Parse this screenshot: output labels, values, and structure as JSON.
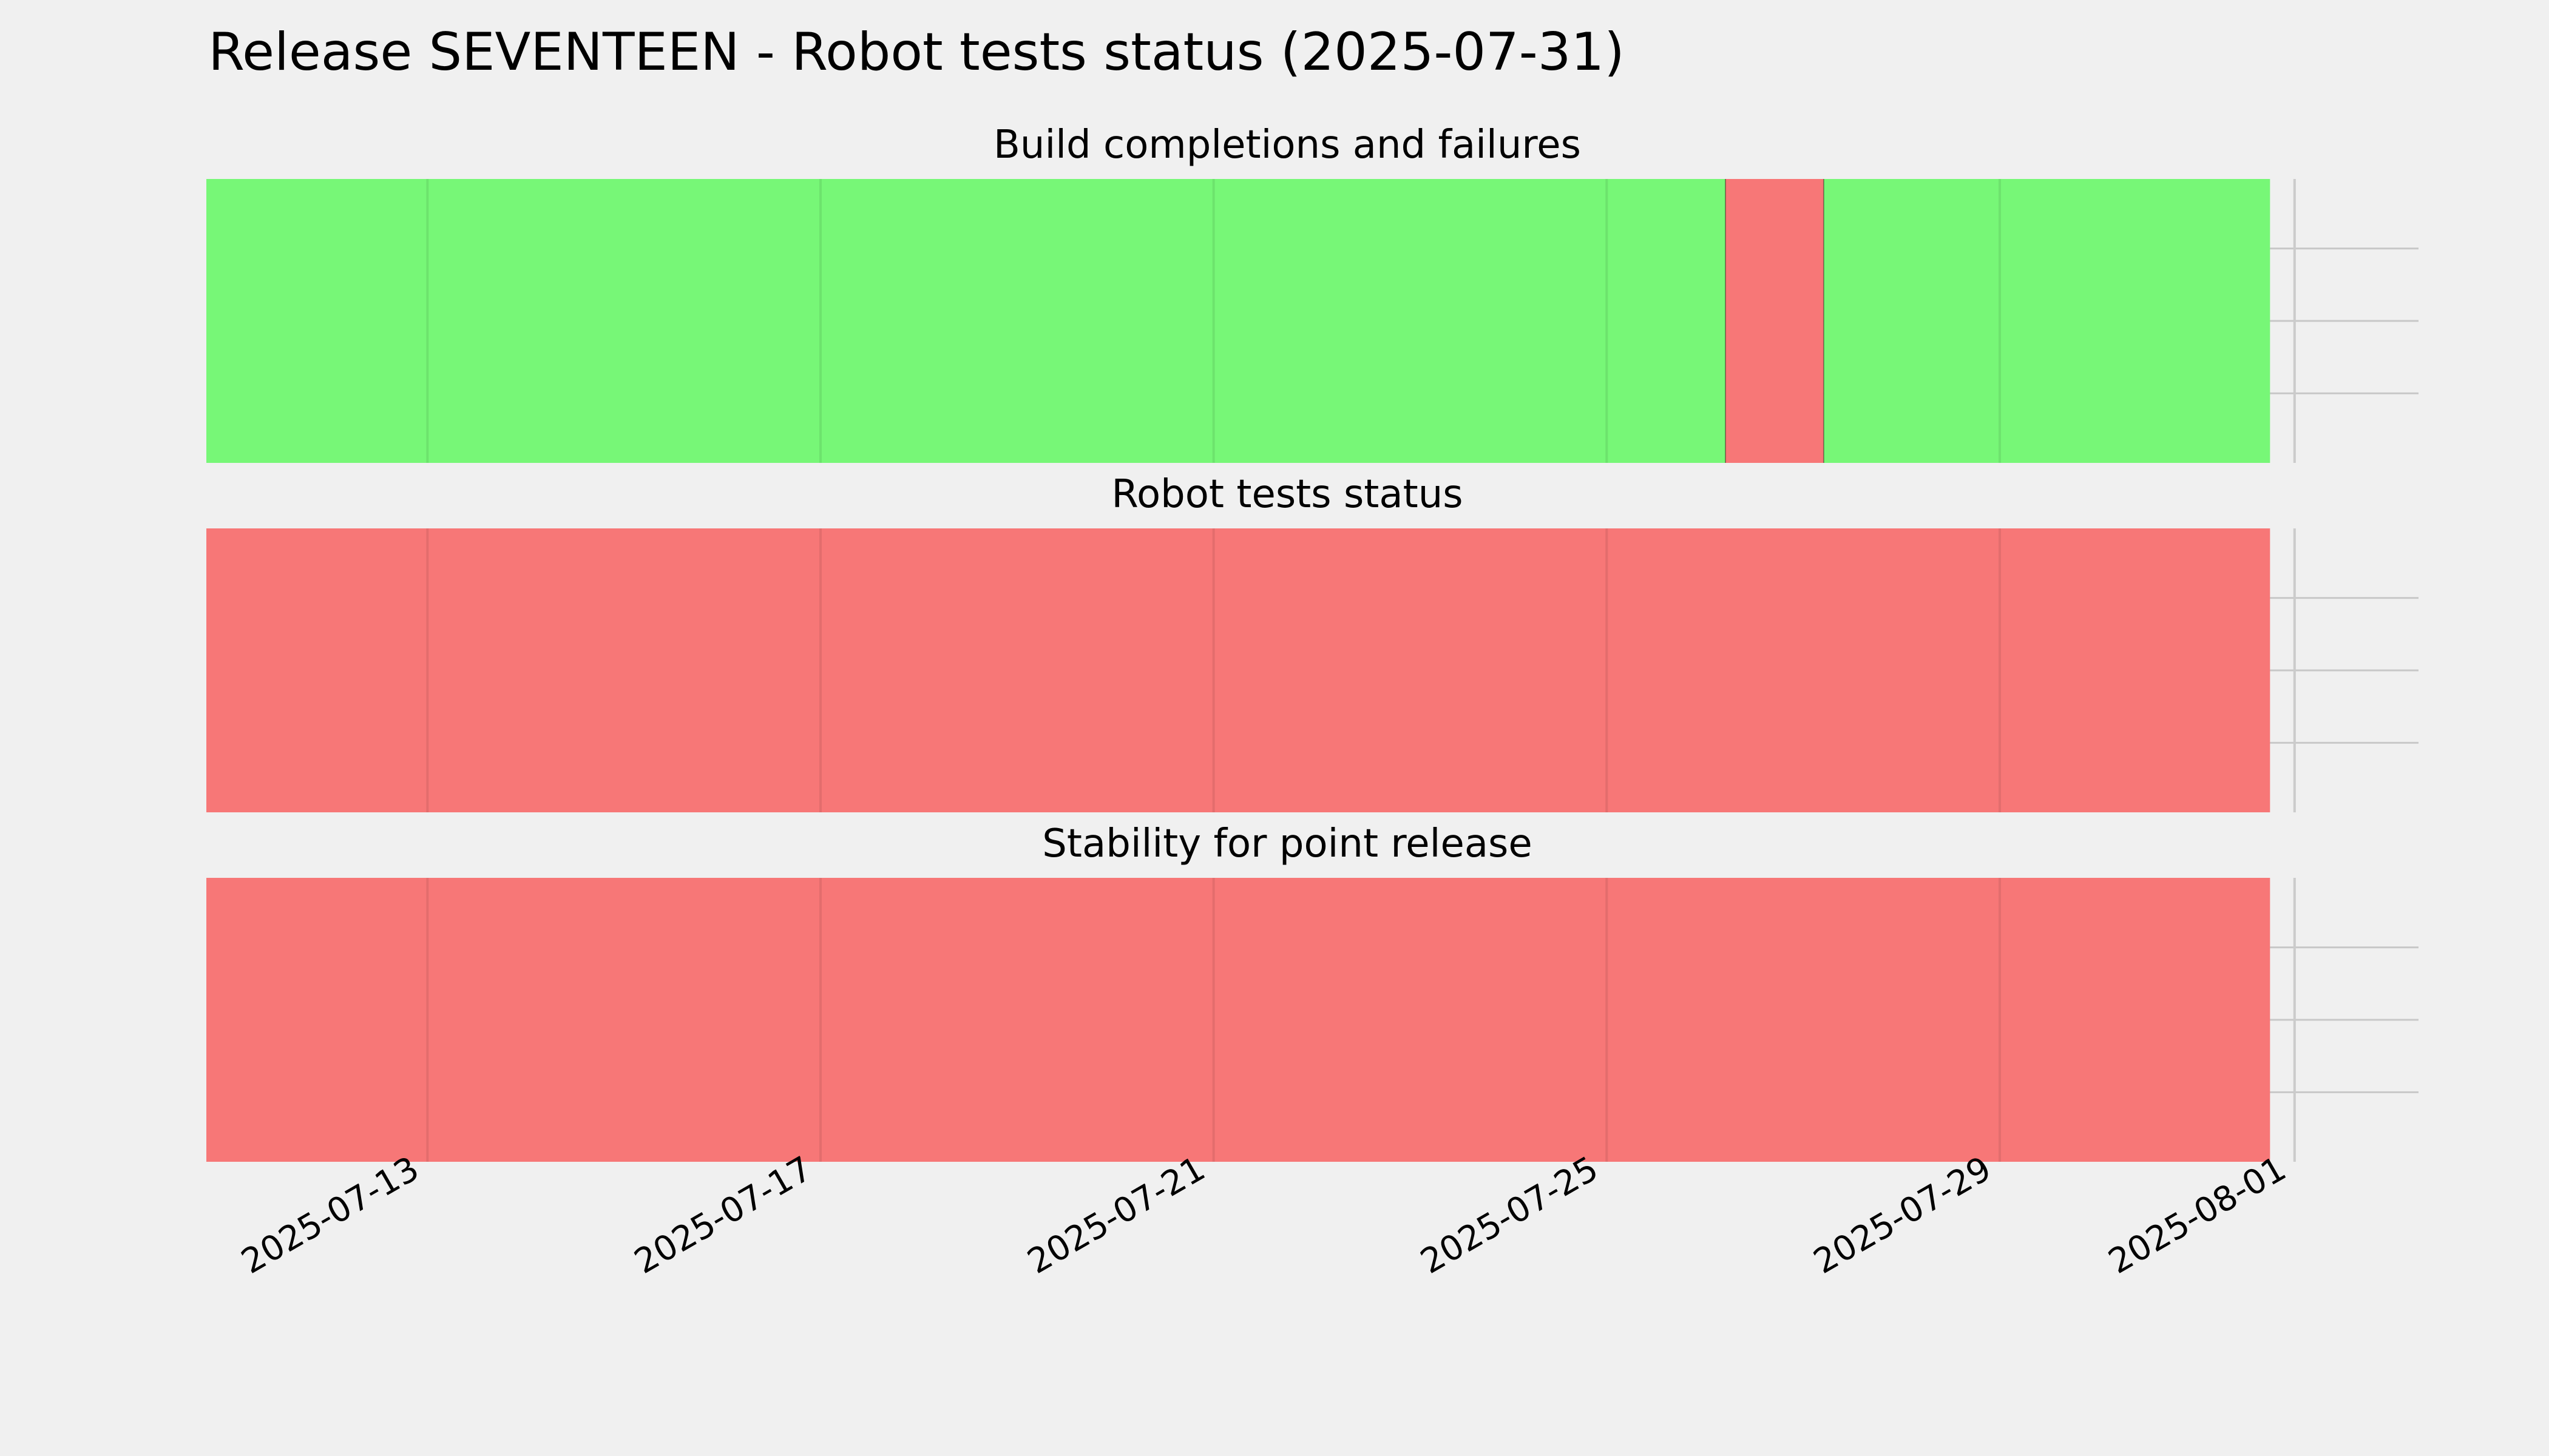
{
  "chart_data": {
    "type": "timeline",
    "title": "Release SEVENTEEN - Robot tests status (2025-07-31)",
    "x_range": [
      "2025-07-10T18:00",
      "2025-08-01T15:00"
    ],
    "x_ticks": [
      "2025-07-13",
      "2025-07-17",
      "2025-07-21",
      "2025-07-25",
      "2025-07-29",
      "2025-08-01"
    ],
    "grid": true,
    "colors": {
      "success": "#77f777",
      "failure": "#f77777"
    },
    "panels": [
      {
        "title": "Build completions and failures",
        "segments": [
          {
            "start": "2025-07-10T18:00",
            "end": "2025-07-26T05:00",
            "status": "success"
          },
          {
            "start": "2025-07-26T05:00",
            "end": "2025-07-27T05:00",
            "status": "failure"
          },
          {
            "start": "2025-07-27T05:00",
            "end": "2025-07-31T18:00",
            "status": "success"
          }
        ]
      },
      {
        "title": "Robot tests status",
        "segments": [
          {
            "start": "2025-07-10T18:00",
            "end": "2025-07-31T18:00",
            "status": "failure"
          }
        ]
      },
      {
        "title": "Stability for point release",
        "segments": [
          {
            "start": "2025-07-10T18:00",
            "end": "2025-07-31T18:00",
            "status": "failure"
          }
        ]
      }
    ]
  }
}
